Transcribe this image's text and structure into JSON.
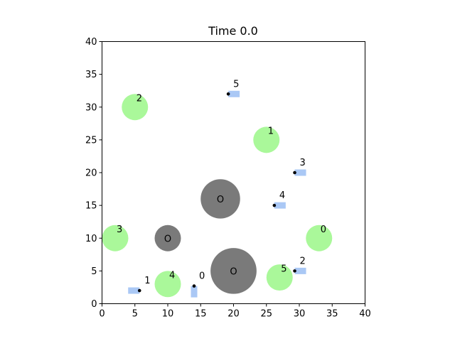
{
  "chart_data": {
    "type": "scatter",
    "title": "Time 0.0",
    "xlim": [
      0,
      40
    ],
    "ylim": [
      0,
      40
    ],
    "xticks": [
      0,
      5,
      10,
      15,
      20,
      25,
      30,
      35,
      40
    ],
    "yticks": [
      0,
      5,
      10,
      15,
      20,
      25,
      30,
      35,
      40
    ],
    "grid": false,
    "obstacles": [
      {
        "label": "O",
        "x": 18,
        "y": 16,
        "r": 3
      },
      {
        "label": "O",
        "x": 10,
        "y": 10,
        "r": 2
      },
      {
        "label": "O",
        "x": 20,
        "y": 5,
        "r": 3.5
      }
    ],
    "goals": [
      {
        "label": "0",
        "x": 33,
        "y": 10,
        "r": 2
      },
      {
        "label": "1",
        "x": 25,
        "y": 25,
        "r": 2
      },
      {
        "label": "2",
        "x": 5,
        "y": 30,
        "r": 2
      },
      {
        "label": "3",
        "x": 2,
        "y": 10,
        "r": 2
      },
      {
        "label": "4",
        "x": 10,
        "y": 3,
        "r": 2
      },
      {
        "label": "5",
        "x": 27,
        "y": 4,
        "r": 2
      }
    ],
    "agents": [
      {
        "label": "0",
        "x": 14,
        "y": 2.7,
        "heading": "down"
      },
      {
        "label": "1",
        "x": 5.7,
        "y": 2,
        "heading": "left"
      },
      {
        "label": "2",
        "x": 29.3,
        "y": 5,
        "heading": "right"
      },
      {
        "label": "3",
        "x": 29.3,
        "y": 20,
        "heading": "right"
      },
      {
        "label": "4",
        "x": 26.2,
        "y": 15,
        "heading": "right"
      },
      {
        "label": "5",
        "x": 19.2,
        "y": 32,
        "heading": "right"
      }
    ],
    "colors": {
      "goal": "#aaf89a",
      "obstacle": "#7a7a7a",
      "agent_body": "#aac8f5",
      "agent_dot": "#000000",
      "axis": "#000000"
    }
  }
}
